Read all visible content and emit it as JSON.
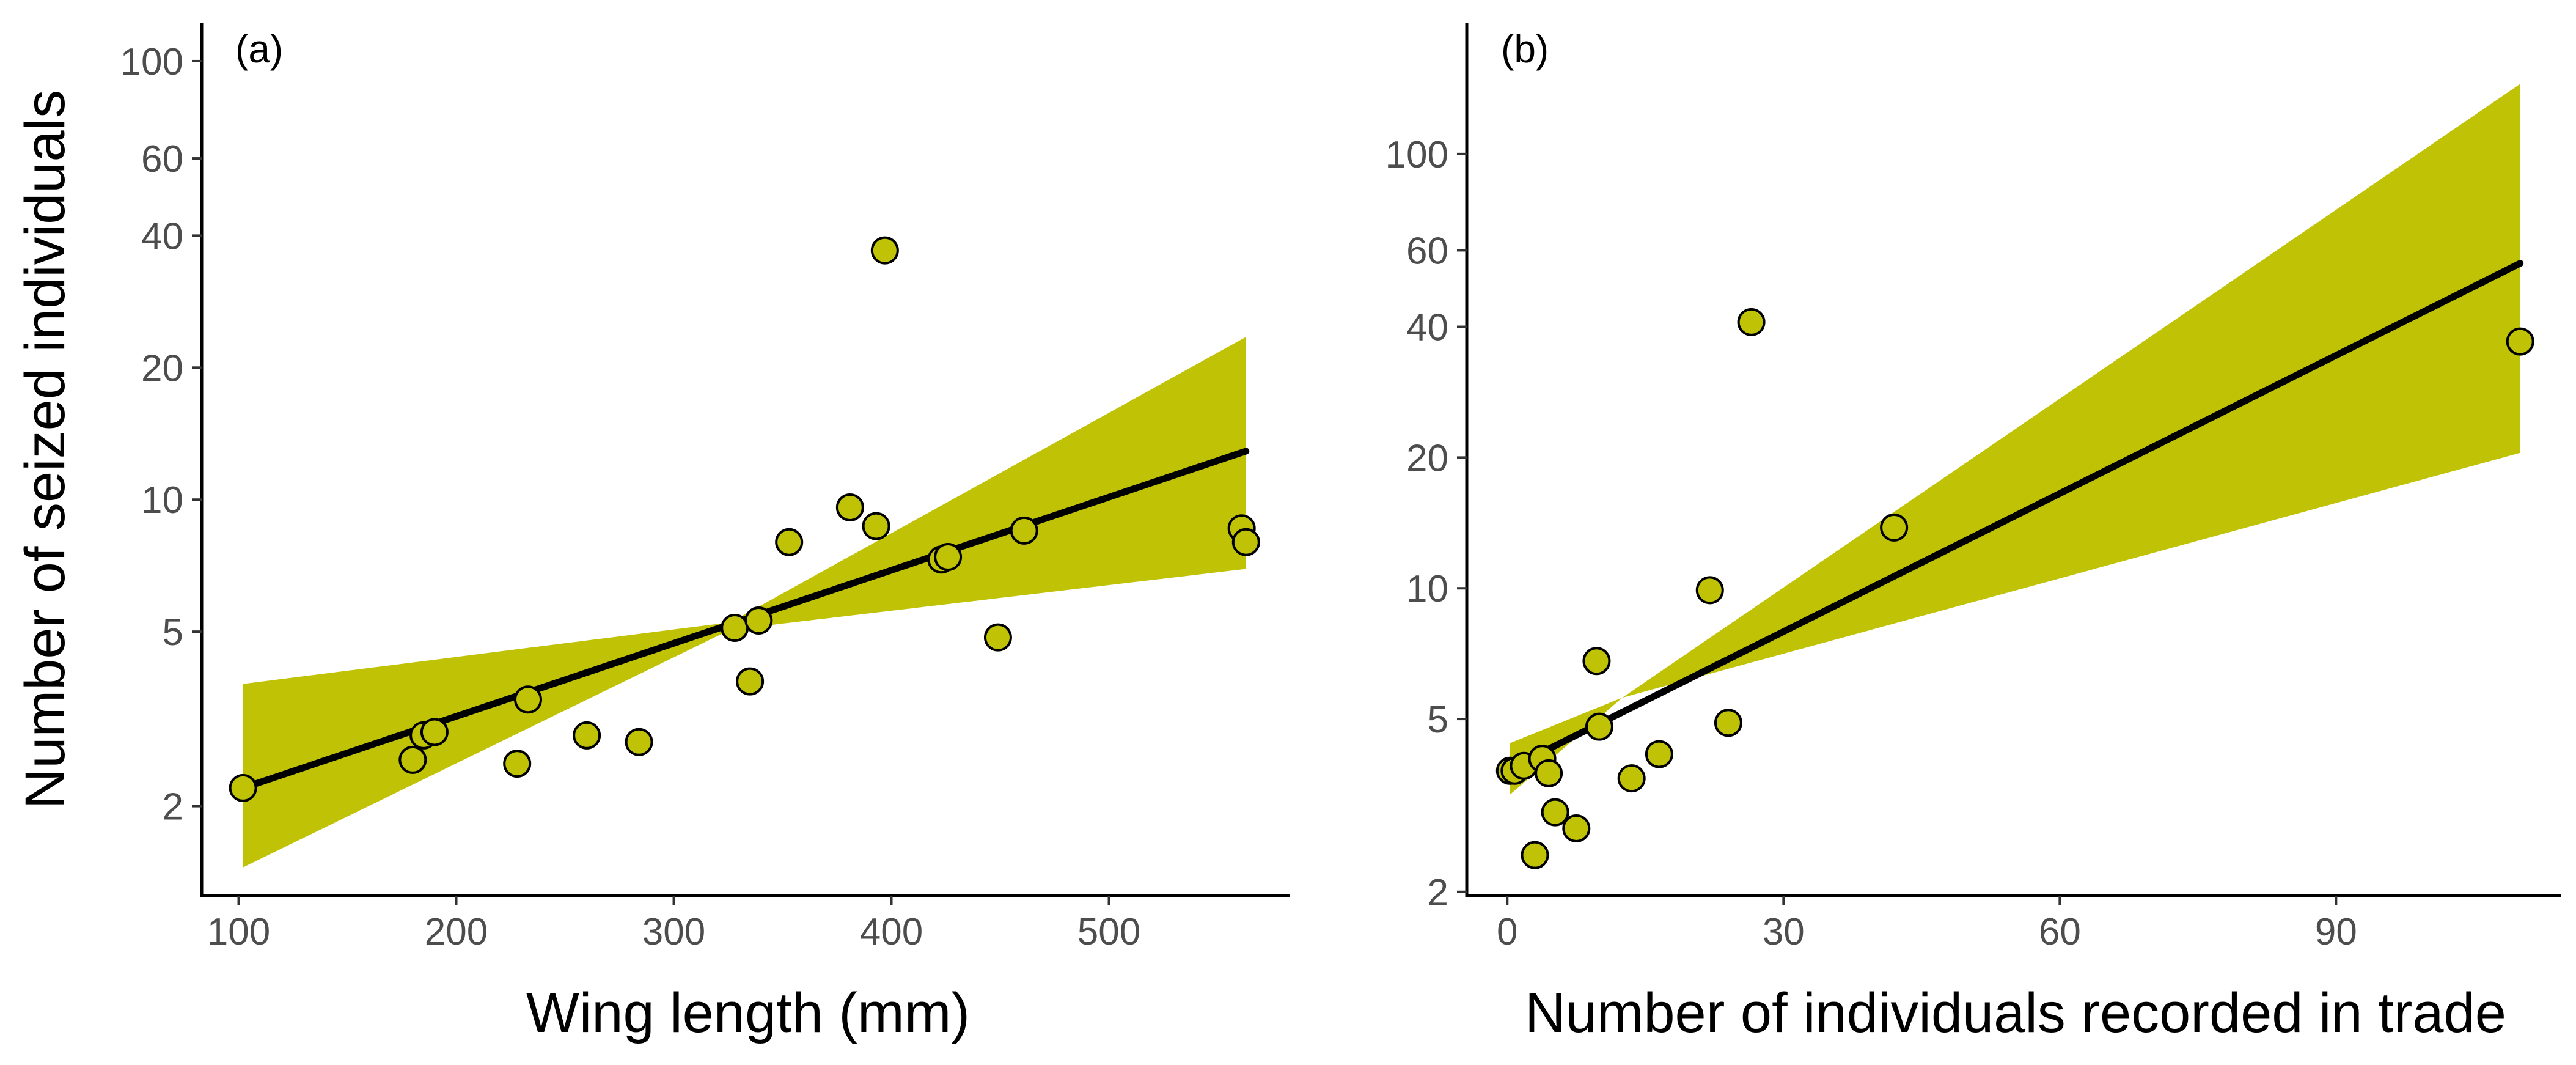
{
  "chart_data": [
    {
      "type": "scatter",
      "panel_label": "(a)",
      "xlabel": "Wing length (mm)",
      "ylabel": "Number of seized individuals",
      "yscale": "log",
      "xlim": [
        83,
        583
      ],
      "ylim": [
        1.25,
        122
      ],
      "xticks": [
        100,
        200,
        300,
        400,
        500
      ],
      "yticks": [
        2,
        5,
        10,
        20,
        40,
        60,
        100
      ],
      "colors": {
        "fill": "#bfc205",
        "line": "#000000"
      },
      "points": [
        {
          "x": 102,
          "y": 2.2
        },
        {
          "x": 180,
          "y": 2.55
        },
        {
          "x": 185,
          "y": 2.9
        },
        {
          "x": 190,
          "y": 2.95
        },
        {
          "x": 228,
          "y": 2.5
        },
        {
          "x": 233,
          "y": 3.5
        },
        {
          "x": 260,
          "y": 2.9
        },
        {
          "x": 284,
          "y": 2.8
        },
        {
          "x": 328,
          "y": 5.1
        },
        {
          "x": 335,
          "y": 3.85
        },
        {
          "x": 339,
          "y": 5.3
        },
        {
          "x": 353,
          "y": 8.0
        },
        {
          "x": 381,
          "y": 9.6
        },
        {
          "x": 393,
          "y": 8.7
        },
        {
          "x": 397,
          "y": 37.0
        },
        {
          "x": 423,
          "y": 7.3
        },
        {
          "x": 426,
          "y": 7.4
        },
        {
          "x": 449,
          "y": 4.85
        },
        {
          "x": 461,
          "y": 8.5
        },
        {
          "x": 561,
          "y": 8.6
        },
        {
          "x": 563,
          "y": 8.0
        }
      ],
      "fit": {
        "x": [
          102,
          563
        ],
        "y": [
          2.2,
          12.9
        ]
      },
      "ci_band": {
        "x": [
          102,
          326,
          563
        ],
        "lower": [
          1.45,
          5.05,
          6.95
        ],
        "upper": [
          3.8,
          5.25,
          23.5
        ]
      }
    },
    {
      "type": "scatter",
      "panel_label": "(b)",
      "xlabel": "Number of individuals recorded in trade",
      "ylabel": "",
      "yscale": "log",
      "xlim": [
        -4.4,
        114.4
      ],
      "ylim": [
        1.96,
        200
      ],
      "xticks": [
        0,
        30,
        60,
        90
      ],
      "yticks": [
        2,
        5,
        10,
        20,
        40,
        60,
        100
      ],
      "colors": {
        "fill": "#bfc205",
        "line": "#000000"
      },
      "points": [
        {
          "x": 0.3,
          "y": 3.8
        },
        {
          "x": 0.8,
          "y": 3.8
        },
        {
          "x": 1.8,
          "y": 3.9
        },
        {
          "x": 3.0,
          "y": 2.43
        },
        {
          "x": 3.8,
          "y": 4.05
        },
        {
          "x": 4.5,
          "y": 3.75
        },
        {
          "x": 5.2,
          "y": 3.05
        },
        {
          "x": 7.5,
          "y": 2.8
        },
        {
          "x": 9.7,
          "y": 6.8
        },
        {
          "x": 10.0,
          "y": 4.8
        },
        {
          "x": 13.5,
          "y": 3.65
        },
        {
          "x": 16.5,
          "y": 4.15
        },
        {
          "x": 22.0,
          "y": 9.9
        },
        {
          "x": 24.0,
          "y": 4.9
        },
        {
          "x": 26.5,
          "y": 41.0
        },
        {
          "x": 42.0,
          "y": 13.8
        },
        {
          "x": 110.0,
          "y": 37.0
        }
      ],
      "fit": {
        "x": [
          0.3,
          110
        ],
        "y": [
          3.85,
          56.0
        ]
      },
      "ci_band": {
        "x": [
          0.3,
          12.5,
          110
        ],
        "lower": [
          3.35,
          5.6,
          20.5
        ],
        "upper": [
          4.4,
          5.6,
          145.0
        ]
      }
    }
  ]
}
